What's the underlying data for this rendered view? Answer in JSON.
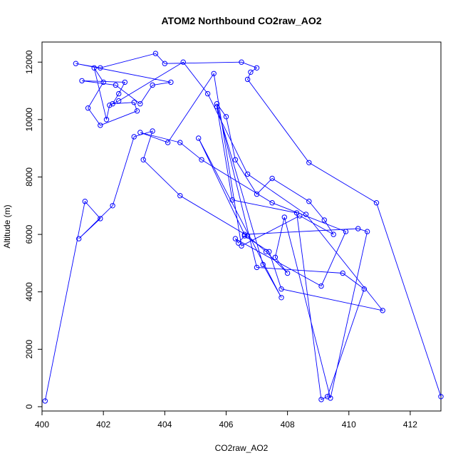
{
  "chart_data": {
    "type": "line",
    "title": "ATOM2 Northbound CO2raw_AO2",
    "xlabel": "CO2raw_AO2",
    "ylabel": "Altitude (m)",
    "xlim": [
      400,
      413
    ],
    "ylim": [
      -150,
      12700
    ],
    "xticks": [
      "400",
      "402",
      "404",
      "406",
      "408",
      "410",
      "412"
    ],
    "yticks": [
      "0",
      "2000",
      "4000",
      "6000",
      "8000",
      "10000",
      "12000"
    ],
    "grid": false,
    "legend": "none",
    "series_color": "#0000ff",
    "x": [
      400.1,
      401.4,
      401.9,
      401.2,
      402.3,
      403.0,
      403.6,
      403.3,
      404.5,
      406.7,
      407.3,
      408.0,
      407.6,
      407.9,
      409.4,
      410.6,
      410.3,
      406.6,
      405.1,
      407.8,
      407.2,
      405.7,
      406.2,
      408.3,
      409.1,
      409.3,
      410.5,
      409.8,
      407.0,
      405.7,
      406.0,
      406.3,
      407.0,
      407.5,
      408.7,
      409.2,
      409.5,
      408.4,
      406.5,
      405.6,
      404.1,
      403.2,
      404.5,
      405.2,
      407.5,
      409.9,
      409.1,
      406.3,
      406.4,
      406.6,
      407.4,
      407.8,
      411.1,
      408.6,
      406.7,
      405.4,
      404.6,
      402.5,
      402.2,
      402.1,
      401.7,
      402.0,
      401.5,
      401.9,
      403.1,
      403.0,
      402.3,
      402.5,
      402.7,
      401.3,
      402.4,
      403.2,
      403.6,
      404.2,
      401.1,
      401.9,
      403.7,
      404.0,
      406.5,
      407.0,
      406.8,
      406.7,
      408.7,
      410.9,
      413.0
    ],
    "y": [
      200,
      7150,
      6550,
      5850,
      7000,
      9400,
      9600,
      8600,
      7350,
      5950,
      5400,
      4650,
      5200,
      6600,
      300,
      6100,
      6200,
      6000,
      9350,
      3800,
      4950,
      10450,
      7200,
      6750,
      250,
      350,
      4100,
      4650,
      4850,
      10550,
      10100,
      8600,
      7400,
      7950,
      7150,
      6500,
      6000,
      6650,
      5600,
      11600,
      9200,
      9550,
      9200,
      8600,
      7100,
      6100,
      4200,
      5850,
      5700,
      5950,
      5400,
      4100,
      3350,
      6700,
      8100,
      10900,
      12000,
      10650,
      10500,
      10000,
      11800,
      11300,
      10400,
      9800,
      10300,
      10600,
      10550,
      10900,
      11300,
      11350,
      11200,
      10550,
      11200,
      11300,
      11950,
      11800,
      12300,
      11950,
      12000,
      11800,
      11650,
      11400,
      8500,
      7100,
      350
    ]
  }
}
